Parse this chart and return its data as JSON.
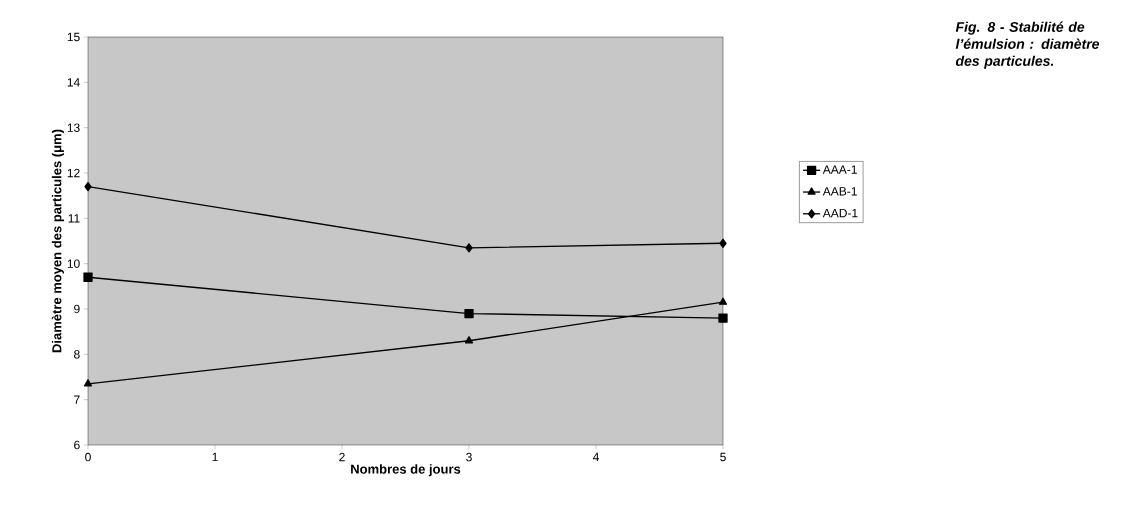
{
  "chart_data": {
    "type": "line",
    "title": "*Fig. 8 - Stabilité de l’émulsion : diamètre des particules.*",
    "xlabel": "Nombres de jours",
    "ylabel": "Diamètre moyen des particules (μm)",
    "x": [
      0,
      3,
      5
    ],
    "xlim": [
      0,
      5
    ],
    "xticks": [
      0,
      1,
      2,
      3,
      4,
      5
    ],
    "ylim": [
      6,
      15
    ],
    "yticks": [
      6,
      7,
      8,
      9,
      10,
      11,
      12,
      13,
      14,
      15
    ],
    "legend": "right",
    "grid": false,
    "line_style": "solid",
    "series": [
      {
        "name": "AAA-1",
        "color": "#000000",
        "marker": "square",
        "values": [
          9.7,
          8.9,
          8.8
        ]
      },
      {
        "name": "AAB-1",
        "color": "#000000",
        "marker": "triangle",
        "values": [
          7.35,
          8.3,
          9.15
        ]
      },
      {
        "name": "AAD-1",
        "color": "#000000",
        "marker": "diamond",
        "values": [
          11.7,
          10.35,
          10.45
        ]
      }
    ]
  }
}
